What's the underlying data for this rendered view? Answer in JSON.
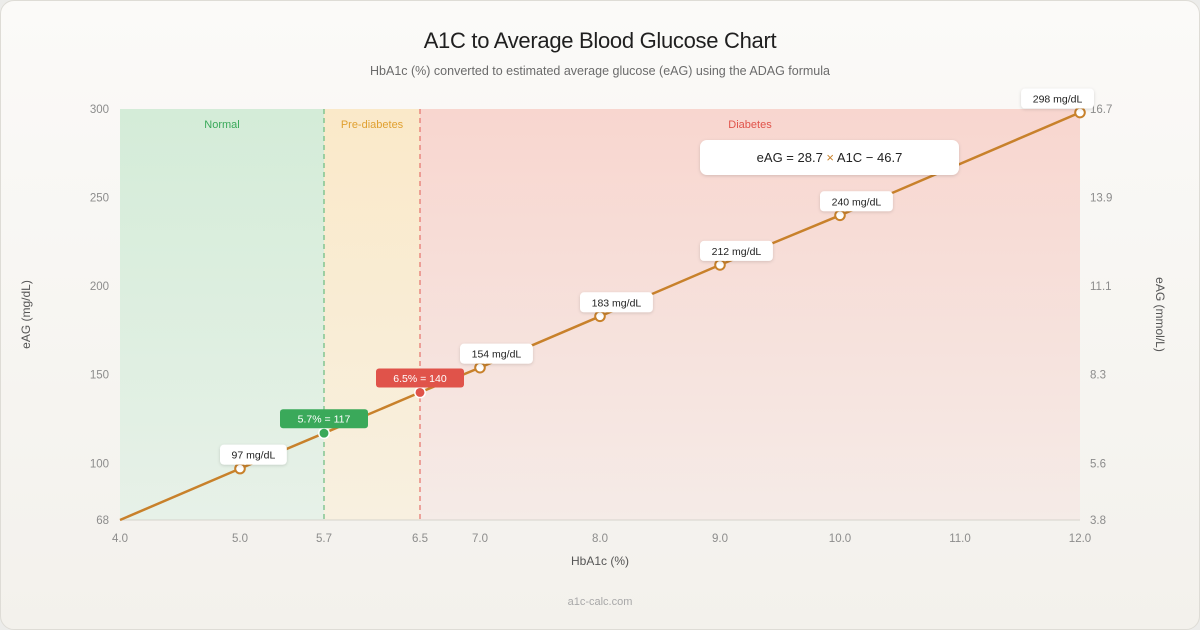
{
  "title": "A1C to Average Blood Glucose Chart",
  "subtitle": "HbA1c (%) converted to estimated average glucose (eAG) using the ADAG formula",
  "footer": "a1c-calc.com",
  "colors": {
    "line": "#c8812b",
    "normal": "#3aa95a",
    "prediabetes": "#e0a030",
    "diabetes": "#e0534a"
  },
  "chart_data": {
    "type": "line",
    "title": "A1C to Average Blood Glucose Chart",
    "subtitle": "HbA1c (%) converted to estimated average glucose (eAG) using the ADAG formula",
    "xlabel": "HbA1c (%)",
    "ylabel": "eAG (mg/dL)",
    "y2label": "eAG (mmol/L)",
    "xlim": [
      4.0,
      12.0
    ],
    "ylim": [
      68,
      300
    ],
    "x_ticks": [
      "4.0",
      "5.0",
      "5.7",
      "6.5",
      "7.0",
      "8.0",
      "9.0",
      "10.0",
      "11.0",
      "12.0"
    ],
    "y_ticks": [
      "68",
      "100",
      "150",
      "200",
      "250",
      "300"
    ],
    "y2_ticks": [
      "3.8",
      "5.6",
      "8.3",
      "11.1",
      "13.9",
      "16.7"
    ],
    "formula": {
      "left": "eAG = 28.7",
      "op": "×",
      "right": "A1C − 46.7"
    },
    "zones": [
      {
        "name": "Normal",
        "from": 4.0,
        "to": 5.7
      },
      {
        "name": "Pre-diabetes",
        "from": 5.7,
        "to": 6.5
      },
      {
        "name": "Diabetes",
        "from": 6.5,
        "to": 12.0
      }
    ],
    "series": [
      {
        "x": [
          4.0,
          5.0,
          5.7,
          6.5,
          7.0,
          8.0,
          9.0,
          10.0,
          12.0
        ],
        "y": [
          68,
          97,
          117,
          140,
          154,
          183,
          212,
          240,
          298
        ]
      }
    ],
    "points": [
      {
        "x": 5.0,
        "y": 97,
        "label": "97 mg/dL"
      },
      {
        "x": 7.0,
        "y": 154,
        "label": "154 mg/dL"
      },
      {
        "x": 8.0,
        "y": 183,
        "label": "183 mg/dL"
      },
      {
        "x": 9.0,
        "y": 212,
        "label": "212 mg/dL"
      },
      {
        "x": 10.0,
        "y": 240,
        "label": "240 mg/dL"
      },
      {
        "x": 12.0,
        "y": 298,
        "label": "298 mg/dL"
      }
    ],
    "thresholds": [
      {
        "x": 5.7,
        "y": 117,
        "label": "5.7% = 117"
      },
      {
        "x": 6.5,
        "y": 140,
        "label": "6.5% = 140"
      }
    ]
  }
}
